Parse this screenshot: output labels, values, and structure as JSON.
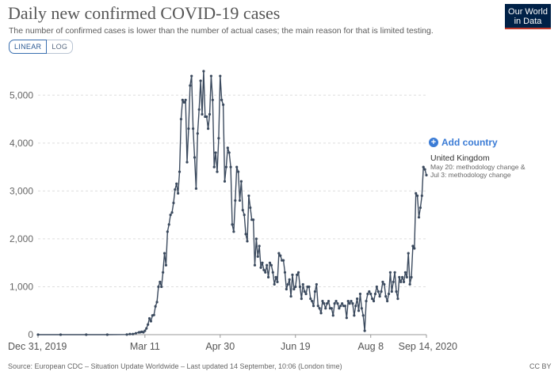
{
  "header": {
    "title": "Daily new confirmed COVID-19 cases",
    "subtitle": "The number of confirmed cases is lower than the number of actual cases; the main reason for that is limited testing."
  },
  "logo": {
    "line1": "Our World",
    "line2": "in Data"
  },
  "controls": {
    "linear_label": "LINEAR",
    "log_label": "LOG",
    "add_country_label": "Add country"
  },
  "series_label": {
    "name": "United Kingdom",
    "note": "May 20: methodology change & Jul 3: methodology change"
  },
  "footer": {
    "source": "Source: European CDC – Situation Update Worldwide – Last updated 14 September, 10:06 (London time)",
    "license": "CC BY"
  },
  "colors": {
    "series": "#3b4a5e",
    "grid": "#dddddd",
    "accent": "#3a7bd5",
    "logo_bg": "#002147"
  },
  "chart_data": {
    "type": "line",
    "title": "Daily new confirmed COVID-19 cases",
    "xlabel": "",
    "ylabel": "",
    "ylim": [
      0,
      5500
    ],
    "xlim": [
      "2019-12-31",
      "2020-09-14"
    ],
    "yticks": [
      0,
      1000,
      2000,
      3000,
      4000,
      5000
    ],
    "ytick_labels": [
      "0",
      "1,000",
      "2,000",
      "3,000",
      "4,000",
      "5,000"
    ],
    "xticks": [
      "2019-12-31",
      "2020-03-11",
      "2020-04-30",
      "2020-06-19",
      "2020-08-08",
      "2020-09-14"
    ],
    "xtick_labels": [
      "Dec 31, 2019",
      "Mar 11",
      "Apr 30",
      "Jun 19",
      "Aug 8",
      "Sep 14, 2020"
    ],
    "grid": true,
    "legend": "right",
    "series": [
      {
        "name": "United Kingdom",
        "color": "#3b4a5e",
        "points": [
          [
            "2019-12-31",
            0
          ],
          [
            "2020-01-15",
            0
          ],
          [
            "2020-02-01",
            0
          ],
          [
            "2020-02-15",
            0
          ],
          [
            "2020-02-28",
            3
          ],
          [
            "2020-03-01",
            12
          ],
          [
            "2020-03-03",
            13
          ],
          [
            "2020-03-05",
            30
          ],
          [
            "2020-03-07",
            48
          ],
          [
            "2020-03-08",
            52
          ],
          [
            "2020-03-09",
            60
          ],
          [
            "2020-03-10",
            50
          ],
          [
            "2020-03-11",
            80
          ],
          [
            "2020-03-12",
            130
          ],
          [
            "2020-03-13",
            210
          ],
          [
            "2020-03-14",
            340
          ],
          [
            "2020-03-15",
            280
          ],
          [
            "2020-03-16",
            400
          ],
          [
            "2020-03-17",
            410
          ],
          [
            "2020-03-18",
            590
          ],
          [
            "2020-03-19",
            680
          ],
          [
            "2020-03-20",
            1000
          ],
          [
            "2020-03-21",
            1100
          ],
          [
            "2020-03-22",
            1000
          ],
          [
            "2020-03-23",
            1300
          ],
          [
            "2020-03-24",
            1700
          ],
          [
            "2020-03-25",
            1450
          ],
          [
            "2020-03-26",
            2150
          ],
          [
            "2020-03-27",
            2300
          ],
          [
            "2020-03-28",
            2500
          ],
          [
            "2020-03-29",
            2550
          ],
          [
            "2020-03-30",
            2750
          ],
          [
            "2020-03-31",
            3030
          ],
          [
            "2020-04-01",
            3150
          ],
          [
            "2020-04-02",
            2950
          ],
          [
            "2020-04-03",
            3400
          ],
          [
            "2020-04-04",
            4500
          ],
          [
            "2020-04-05",
            4900
          ],
          [
            "2020-04-06",
            4850
          ],
          [
            "2020-04-07",
            4900
          ],
          [
            "2020-04-08",
            3600
          ],
          [
            "2020-04-09",
            4300
          ],
          [
            "2020-04-10",
            5200
          ],
          [
            "2020-04-11",
            5400
          ],
          [
            "2020-04-12",
            4300
          ],
          [
            "2020-04-13",
            3700
          ],
          [
            "2020-04-14",
            3050
          ],
          [
            "2020-04-15",
            4200
          ],
          [
            "2020-04-16",
            4700
          ],
          [
            "2020-04-17",
            5300
          ],
          [
            "2020-04-18",
            4600
          ],
          [
            "2020-04-19",
            5500
          ],
          [
            "2020-04-20",
            4550
          ],
          [
            "2020-04-21",
            4550
          ],
          [
            "2020-04-22",
            4300
          ],
          [
            "2020-04-23",
            4600
          ],
          [
            "2020-04-24",
            5400
          ],
          [
            "2020-04-25",
            4900
          ],
          [
            "2020-04-26",
            3500
          ],
          [
            "2020-04-27",
            3800
          ],
          [
            "2020-04-28",
            3400
          ],
          [
            "2020-04-29",
            4100
          ],
          [
            "2020-04-30",
            5400
          ],
          [
            "2020-05-01",
            4900
          ],
          [
            "2020-05-02",
            4800
          ],
          [
            "2020-05-03",
            3200
          ],
          [
            "2020-05-04",
            3500
          ],
          [
            "2020-05-05",
            3900
          ],
          [
            "2020-05-06",
            3800
          ],
          [
            "2020-05-07",
            3500
          ],
          [
            "2020-05-08",
            2300
          ],
          [
            "2020-05-09",
            2150
          ],
          [
            "2020-05-10",
            2800
          ],
          [
            "2020-05-11",
            3500
          ],
          [
            "2020-05-12",
            3400
          ],
          [
            "2020-05-13",
            2800
          ],
          [
            "2020-05-14",
            3200
          ],
          [
            "2020-05-15",
            2600
          ],
          [
            "2020-05-16",
            2500
          ],
          [
            "2020-05-17",
            2100
          ],
          [
            "2020-05-18",
            1950
          ],
          [
            "2020-05-19",
            2900
          ],
          [
            "2020-05-20",
            2650
          ],
          [
            "2020-05-21",
            2400
          ],
          [
            "2020-05-22",
            2400
          ],
          [
            "2020-05-23",
            1450
          ],
          [
            "2020-05-24",
            2000
          ],
          [
            "2020-05-25",
            1630
          ],
          [
            "2020-05-26",
            1850
          ],
          [
            "2020-05-27",
            1400
          ],
          [
            "2020-05-28",
            1500
          ],
          [
            "2020-05-29",
            1350
          ],
          [
            "2020-05-30",
            1300
          ],
          [
            "2020-05-31",
            1450
          ],
          [
            "2020-06-01",
            1200
          ],
          [
            "2020-06-02",
            1500
          ],
          [
            "2020-06-03",
            1450
          ],
          [
            "2020-06-04",
            1300
          ],
          [
            "2020-06-05",
            1050
          ],
          [
            "2020-06-06",
            1200
          ],
          [
            "2020-06-07",
            1100
          ],
          [
            "2020-06-08",
            1700
          ],
          [
            "2020-06-09",
            1650
          ],
          [
            "2020-06-10",
            1550
          ],
          [
            "2020-06-11",
            1550
          ],
          [
            "2020-06-12",
            1300
          ],
          [
            "2020-06-13",
            950
          ],
          [
            "2020-06-14",
            1050
          ],
          [
            "2020-06-15",
            1150
          ],
          [
            "2020-06-16",
            800
          ],
          [
            "2020-06-17",
            1250
          ],
          [
            "2020-06-18",
            950
          ],
          [
            "2020-06-19",
            1000
          ],
          [
            "2020-06-20",
            1250
          ],
          [
            "2020-06-21",
            1300
          ],
          [
            "2020-06-22",
            1000
          ],
          [
            "2020-06-23",
            750
          ],
          [
            "2020-06-24",
            1050
          ],
          [
            "2020-06-25",
            900
          ],
          [
            "2020-06-26",
            850
          ],
          [
            "2020-06-27",
            1000
          ],
          [
            "2020-06-28",
            1000
          ],
          [
            "2020-06-29",
            750
          ],
          [
            "2020-06-30",
            700
          ],
          [
            "2020-07-01",
            600
          ],
          [
            "2020-07-02",
            900
          ],
          [
            "2020-07-03",
            1050
          ],
          [
            "2020-07-04",
            600
          ],
          [
            "2020-07-05",
            550
          ],
          [
            "2020-07-06",
            450
          ],
          [
            "2020-07-07",
            700
          ],
          [
            "2020-07-08",
            650
          ],
          [
            "2020-07-09",
            550
          ],
          [
            "2020-07-10",
            650
          ],
          [
            "2020-07-11",
            700
          ],
          [
            "2020-07-12",
            550
          ],
          [
            "2020-07-13",
            550
          ],
          [
            "2020-07-14",
            400
          ],
          [
            "2020-07-15",
            650
          ],
          [
            "2020-07-16",
            700
          ],
          [
            "2020-07-17",
            650
          ],
          [
            "2020-07-18",
            550
          ],
          [
            "2020-07-19",
            600
          ],
          [
            "2020-07-20",
            650
          ],
          [
            "2020-07-21",
            600
          ],
          [
            "2020-07-22",
            600
          ],
          [
            "2020-07-23",
            350
          ],
          [
            "2020-07-24",
            700
          ],
          [
            "2020-07-25",
            650
          ],
          [
            "2020-07-26",
            700
          ],
          [
            "2020-07-27",
            650
          ],
          [
            "2020-07-28",
            400
          ],
          [
            "2020-07-29",
            600
          ],
          [
            "2020-07-30",
            750
          ],
          [
            "2020-07-31",
            500
          ],
          [
            "2020-08-01",
            850
          ],
          [
            "2020-08-02",
            550
          ],
          [
            "2020-08-03",
            400
          ],
          [
            "2020-08-04",
            80
          ],
          [
            "2020-08-05",
            700
          ],
          [
            "2020-08-06",
            850
          ],
          [
            "2020-08-07",
            900
          ],
          [
            "2020-08-08",
            850
          ],
          [
            "2020-08-09",
            750
          ],
          [
            "2020-08-10",
            700
          ],
          [
            "2020-08-11",
            850
          ],
          [
            "2020-08-12",
            1000
          ],
          [
            "2020-08-13",
            900
          ],
          [
            "2020-08-14",
            800
          ],
          [
            "2020-08-15",
            900
          ],
          [
            "2020-08-16",
            1100
          ],
          [
            "2020-08-17",
            1050
          ],
          [
            "2020-08-18",
            800
          ],
          [
            "2020-08-19",
            700
          ],
          [
            "2020-08-20",
            850
          ],
          [
            "2020-08-21",
            1300
          ],
          [
            "2020-08-22",
            900
          ],
          [
            "2020-08-23",
            1100
          ],
          [
            "2020-08-24",
            1300
          ],
          [
            "2020-08-25",
            900
          ],
          [
            "2020-08-26",
            750
          ],
          [
            "2020-08-27",
            1200
          ],
          [
            "2020-08-28",
            1100
          ],
          [
            "2020-08-29",
            1200
          ],
          [
            "2020-08-30",
            1100
          ],
          [
            "2020-08-31",
            1300
          ],
          [
            "2020-09-01",
            1200
          ],
          [
            "2020-09-02",
            1700
          ],
          [
            "2020-09-03",
            1050
          ],
          [
            "2020-09-04",
            1200
          ],
          [
            "2020-09-05",
            1850
          ],
          [
            "2020-09-06",
            1800
          ],
          [
            "2020-09-07",
            2950
          ],
          [
            "2020-09-08",
            2900
          ],
          [
            "2020-09-09",
            2450
          ],
          [
            "2020-09-10",
            2650
          ],
          [
            "2020-09-11",
            2900
          ],
          [
            "2020-09-12",
            3500
          ],
          [
            "2020-09-13",
            3450
          ],
          [
            "2020-09-14",
            3330
          ]
        ]
      }
    ]
  }
}
